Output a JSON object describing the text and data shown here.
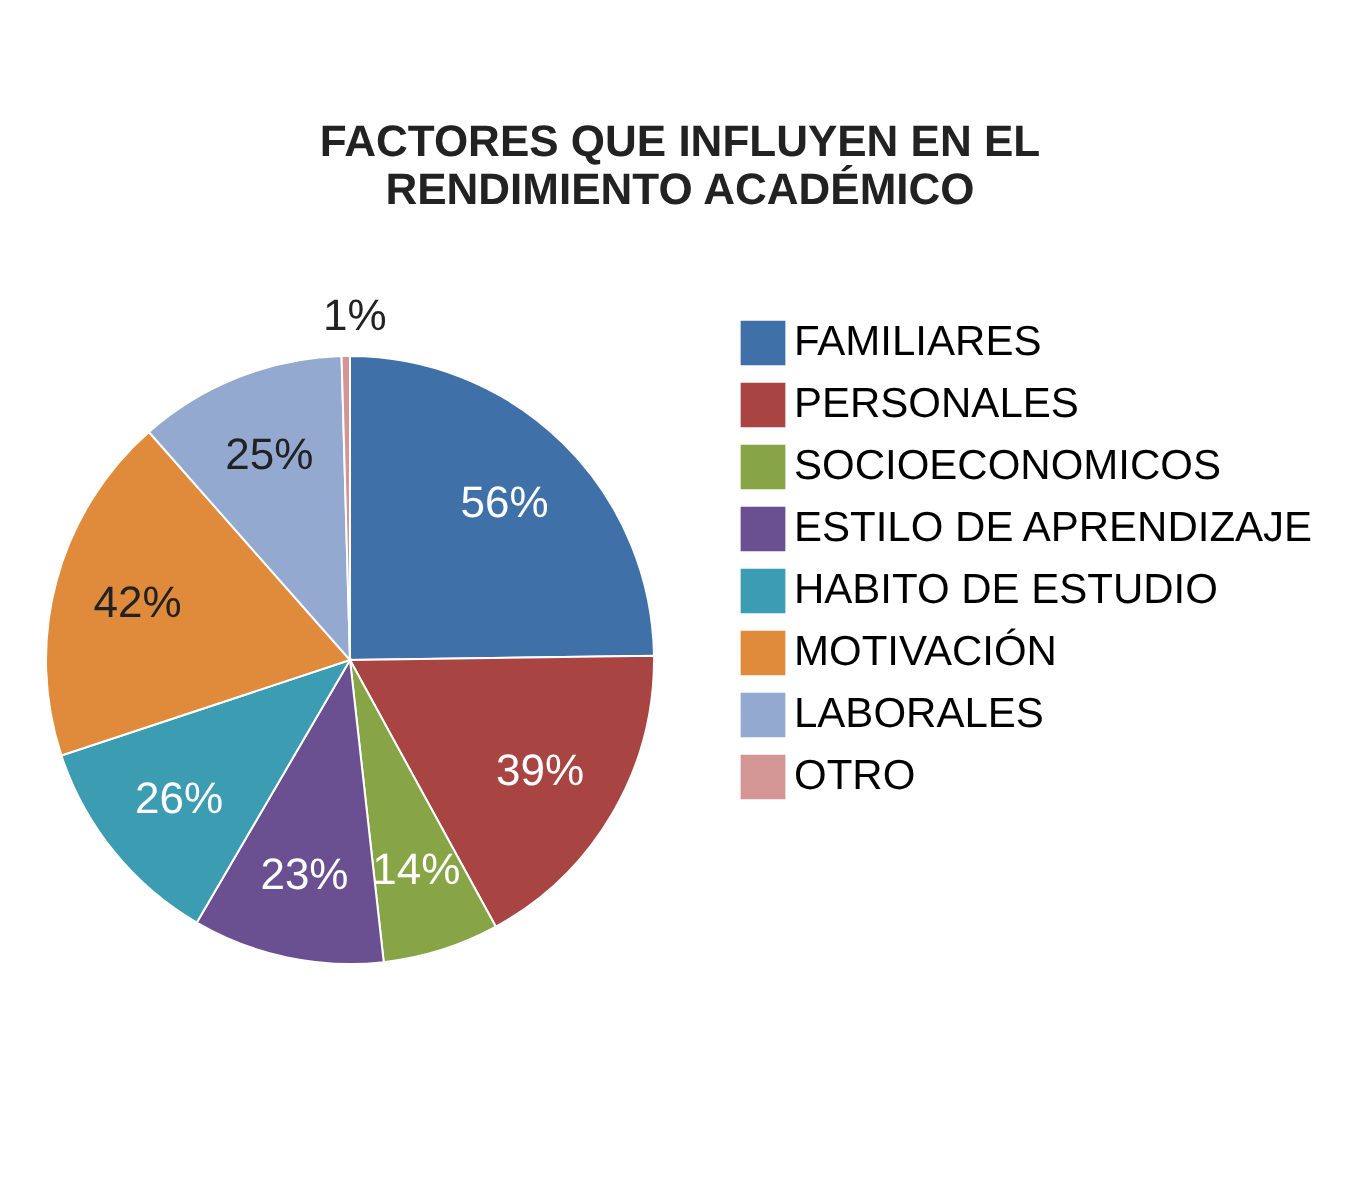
{
  "chart_data": {
    "type": "pie",
    "title": "FACTORES QUE INFLUYEN EN EL RENDIMIENTO ACADÉMICO",
    "categories": [
      "FAMILIARES",
      "PERSONALES",
      "SOCIOECONOMICOS",
      "ESTILO DE APRENDIZAJE",
      "HABITO DE ESTUDIO",
      "MOTIVACIÓN",
      "LABORALES",
      "OTRO"
    ],
    "values": [
      56,
      39,
      14,
      23,
      26,
      42,
      25,
      1
    ],
    "value_labels": [
      "56%",
      "39%",
      "14%",
      "23%",
      "26%",
      "42%",
      "25%",
      "1%"
    ],
    "colors": [
      "#3f70a8",
      "#a84543",
      "#87a447",
      "#6a5090",
      "#3c9cb1",
      "#e08a3c",
      "#93a9d0",
      "#d39694"
    ],
    "legend": "right"
  }
}
